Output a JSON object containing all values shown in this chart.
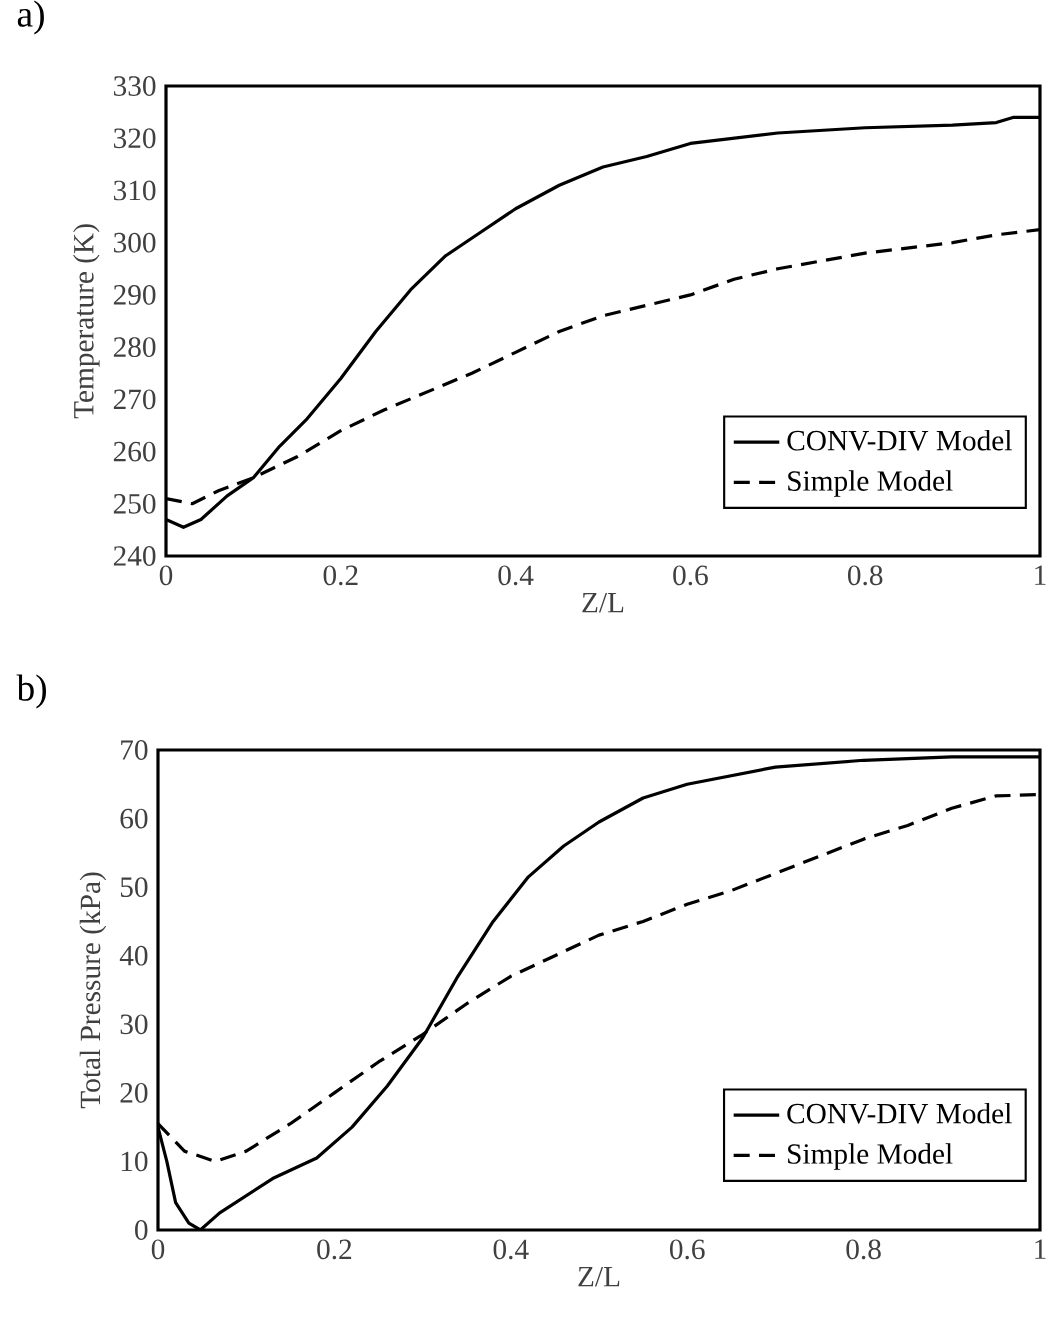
{
  "chart_data": [
    {
      "type": "line",
      "title": "a)",
      "xlabel": "Z/L",
      "ylabel": "Temperature (K)",
      "xlim": [
        0,
        1
      ],
      "ylim": [
        240,
        330
      ],
      "xticks": [
        0,
        0.2,
        0.4,
        0.6,
        0.8,
        1
      ],
      "yticks": [
        240,
        250,
        260,
        270,
        280,
        290,
        300,
        310,
        320,
        330
      ],
      "legend": "bottom right",
      "series": [
        {
          "name": "CONV-DIV Model",
          "color": "#000000",
          "line_style": "solid",
          "x": [
            0,
            0.02,
            0.04,
            0.07,
            0.1,
            0.13,
            0.16,
            0.2,
            0.24,
            0.28,
            0.32,
            0.36,
            0.4,
            0.45,
            0.5,
            0.55,
            0.6,
            0.7,
            0.8,
            0.9,
            0.95,
            0.97,
            1
          ],
          "values": [
            247,
            245.5,
            247,
            251.5,
            255,
            261,
            266,
            274,
            283,
            291,
            297.5,
            302,
            306.5,
            311,
            314.5,
            316.5,
            319,
            321,
            322,
            322.5,
            323,
            324,
            324
          ]
        },
        {
          "name": "Simple Model",
          "color": "#000000",
          "line_style": "dashed",
          "x": [
            0,
            0.03,
            0.06,
            0.1,
            0.15,
            0.2,
            0.25,
            0.3,
            0.35,
            0.4,
            0.45,
            0.5,
            0.55,
            0.6,
            0.65,
            0.7,
            0.75,
            0.8,
            0.85,
            0.9,
            0.95,
            1
          ],
          "values": [
            251,
            250,
            252.5,
            255,
            259,
            264,
            268,
            271.5,
            275,
            279,
            283,
            286,
            288,
            290,
            293,
            295,
            296.5,
            298,
            299,
            300,
            301.5,
            302.5
          ]
        }
      ]
    },
    {
      "type": "line",
      "title": "b)",
      "xlabel": "Z/L",
      "ylabel": "Total Pressure (kPa)",
      "xlim": [
        0,
        1
      ],
      "ylim": [
        0,
        70
      ],
      "xticks": [
        0,
        0.2,
        0.4,
        0.6,
        0.8,
        1
      ],
      "yticks": [
        0,
        10,
        20,
        30,
        40,
        50,
        60,
        70
      ],
      "legend": "bottom right",
      "series": [
        {
          "name": "CONV-DIV Model",
          "color": "#000000",
          "line_style": "solid",
          "x": [
            0,
            0.01,
            0.02,
            0.035,
            0.048,
            0.07,
            0.1,
            0.13,
            0.18,
            0.22,
            0.26,
            0.3,
            0.34,
            0.38,
            0.42,
            0.46,
            0.5,
            0.55,
            0.6,
            0.7,
            0.8,
            0.9,
            1
          ],
          "values": [
            15,
            10,
            4,
            1,
            0,
            2.5,
            5,
            7.5,
            10.5,
            15,
            21,
            28,
            37,
            45,
            51.5,
            56,
            59.5,
            63,
            65,
            67.5,
            68.5,
            69,
            69
          ]
        },
        {
          "name": "Simple Model",
          "color": "#000000",
          "line_style": "dashed",
          "x": [
            0,
            0.03,
            0.065,
            0.1,
            0.15,
            0.2,
            0.25,
            0.3,
            0.35,
            0.4,
            0.45,
            0.5,
            0.55,
            0.6,
            0.65,
            0.7,
            0.75,
            0.8,
            0.85,
            0.9,
            0.95,
            1
          ],
          "values": [
            15.5,
            11.5,
            10,
            11.5,
            15.5,
            20,
            24.5,
            28.5,
            33,
            37,
            40,
            43,
            45,
            47.5,
            49.5,
            52,
            54.5,
            57,
            59,
            61.5,
            63.3,
            63.5
          ]
        }
      ]
    }
  ]
}
